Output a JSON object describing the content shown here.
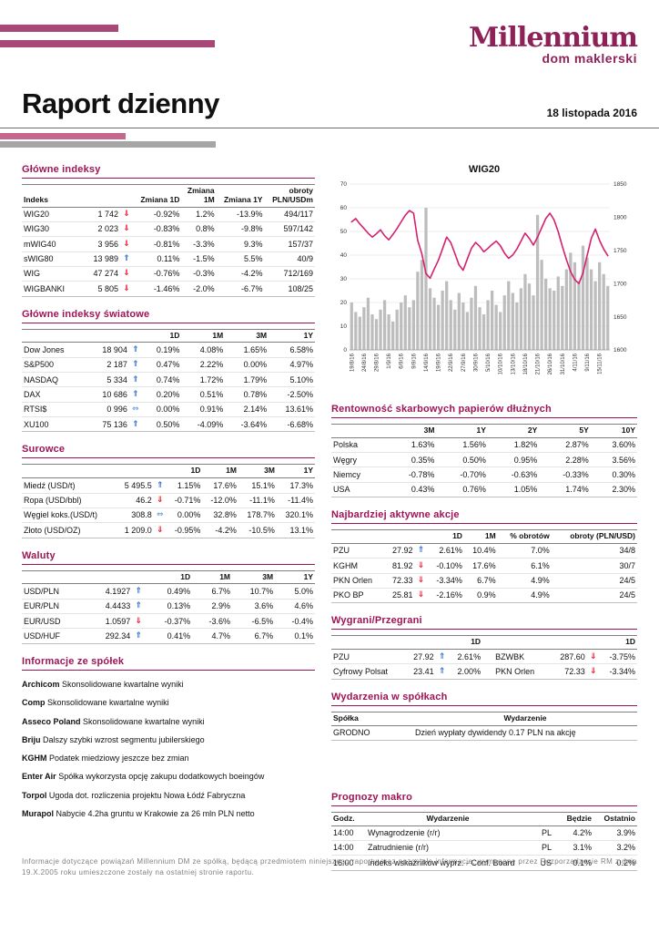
{
  "page": {
    "logo": {
      "name": "Millennium",
      "subtitle": "dom maklerski"
    },
    "title": "Raport dzienny",
    "date": "18 listopada 2016",
    "footer": "Informacje dotyczące powiązań Millennium DM ze spółką, będącą przedmiotem niniejszego raportu oraz pozostałe informacje, wymagane przez Rozporządzenie RM z dnia 19.X.2005 roku umieszczone zostały na ostatniej stronie raportu.",
    "colors": {
      "brand": "#9e1456",
      "accent_pink": "#c4688e",
      "accent_gray": "#a6a6a6",
      "up_arrow": "#2e6fd0",
      "down_arrow": "#f0142d",
      "flat_arrow": "#6fa8dc"
    }
  },
  "sections": {
    "main_indexes": {
      "title": "Główne indeksy",
      "headers": [
        "Indeks",
        "",
        "",
        "Zmiana 1D",
        "Zmiana\n1M",
        "Zmiana 1Y",
        "obroty\nPLN/USDm"
      ],
      "rows": [
        [
          "WIG20",
          "1 742",
          "@down",
          "-0.92%",
          "1.2%",
          "-13.9%",
          "494/117"
        ],
        [
          "WIG30",
          "2 023",
          "@down",
          "-0.83%",
          "0.8%",
          "-9.8%",
          "597/142"
        ],
        [
          "mWIG40",
          "3 956",
          "@down",
          "-0.81%",
          "-3.3%",
          "9.3%",
          "157/37"
        ],
        [
          "sWIG80",
          "13 989",
          "@up",
          "0.11%",
          "-1.5%",
          "5.5%",
          "40/9"
        ],
        [
          "WIG",
          "47 274",
          "@down",
          "-0.76%",
          "-0.3%",
          "-4.2%",
          "712/169"
        ],
        [
          "WIGBANKI",
          "5 805",
          "@down",
          "-1.46%",
          "-2.0%",
          "-6.7%",
          "108/25"
        ]
      ]
    },
    "world_indexes": {
      "title": "Główne indeksy światowe",
      "headers": [
        "",
        "",
        "",
        "1D",
        "1M",
        "3M",
        "1Y"
      ],
      "rows": [
        [
          "Dow Jones",
          "18 904",
          "@up",
          "0.19%",
          "4.08%",
          "1.65%",
          "6.58%"
        ],
        [
          "S&P500",
          "2 187",
          "@up",
          "0.47%",
          "2.22%",
          "0.00%",
          "4.97%"
        ],
        [
          "NASDAQ",
          "5 334",
          "@up",
          "0.74%",
          "1.72%",
          "1.79%",
          "5.10%"
        ],
        [
          "DAX",
          "10 686",
          "@up",
          "0.20%",
          "0.51%",
          "0.78%",
          "-2.50%"
        ],
        [
          "RTSI$",
          "0 996",
          "@flat",
          "0.00%",
          "0.91%",
          "2.14%",
          "13.61%"
        ],
        [
          "XU100",
          "75 136",
          "@up",
          "0.50%",
          "-4.09%",
          "-3.64%",
          "-6.68%"
        ]
      ]
    },
    "commodities": {
      "title": "Surowce",
      "headers": [
        "",
        "",
        "",
        "1D",
        "1M",
        "3M",
        "1Y"
      ],
      "rows": [
        [
          "Miedź (USD/t)",
          "5 495.5",
          "@up",
          "1.15%",
          "17.6%",
          "15.1%",
          "17.3%"
        ],
        [
          "Ropa (USD/bbl)",
          "46.2",
          "@down",
          "-0.71%",
          "-12.0%",
          "-11.1%",
          "-11.4%"
        ],
        [
          "Węgiel koks.(USD/t)",
          "308.8",
          "@flat",
          "0.00%",
          "32.8%",
          "178.7%",
          "320.1%"
        ],
        [
          "Złoto (USD/OZ)",
          "1 209.0",
          "@down",
          "-0.95%",
          "-4.2%",
          "-10.5%",
          "13.1%"
        ]
      ]
    },
    "currencies": {
      "title": "Waluty",
      "headers": [
        "",
        "",
        "",
        "1D",
        "1M",
        "3M",
        "1Y"
      ],
      "rows": [
        [
          "USD/PLN",
          "4.1927",
          "@up",
          "0.49%",
          "6.7%",
          "10.7%",
          "5.0%"
        ],
        [
          "EUR/PLN",
          "4.4433",
          "@up",
          "0.13%",
          "2.9%",
          "3.6%",
          "4.6%"
        ],
        [
          "EUR/USD",
          "1.0597",
          "@down",
          "-0.37%",
          "-3.6%",
          "-6.5%",
          "-0.4%"
        ],
        [
          "USD/HUF",
          "292.34",
          "@up",
          "0.41%",
          "4.7%",
          "6.7%",
          "0.1%"
        ]
      ]
    },
    "company_news": {
      "title": "Informacje ze spółek",
      "items": [
        {
          "name": "Archicom",
          "text": "Skonsolidowane kwartalne wyniki"
        },
        {
          "name": "Comp",
          "text": "Skonsolidowane kwartalne wyniki"
        },
        {
          "name": "Asseco Poland",
          "text": "Skonsolidowane kwartalne wyniki"
        },
        {
          "name": "Briju",
          "text": "Dalszy szybki wzrost segmentu jubilerskiego"
        },
        {
          "name": "KGHM",
          "text": "Podatek miedziowy jeszcze bez zmian"
        },
        {
          "name": "Enter Air",
          "text": "Spółka wykorzysta opcję zakupu dodatkowych boeingów"
        },
        {
          "name": "Torpol",
          "text": "Ugoda dot. rozliczenia projektu Nowa Łódź Fabryczna"
        },
        {
          "name": "Murapol",
          "text": "Nabycie 4.2ha gruntu w Krakowie za 26 mln PLN netto"
        }
      ]
    },
    "bonds": {
      "title": "Rentowność skarbowych papierów dłużnych",
      "headers": [
        "",
        "3M",
        "1Y",
        "2Y",
        "5Y",
        "10Y"
      ],
      "rows": [
        [
          "Polska",
          "1.63%",
          "1.56%",
          "1.82%",
          "2.87%",
          "3.60%"
        ],
        [
          "Węgry",
          "0.35%",
          "0.50%",
          "0.95%",
          "2.28%",
          "3.56%"
        ],
        [
          "Niemcy",
          "-0.78%",
          "-0.70%",
          "-0.63%",
          "-0.33%",
          "0.30%"
        ],
        [
          "USA",
          "0.43%",
          "0.76%",
          "1.05%",
          "1.74%",
          "2.30%"
        ]
      ]
    },
    "active_stocks": {
      "title": "Najbardziej aktywne akcje",
      "headers": [
        "",
        "",
        "",
        "1D",
        "1M",
        "% obrotów",
        "obroty (PLN/USD)"
      ],
      "rows": [
        [
          "PZU",
          "27.92",
          "@up",
          "2.61%",
          "10.4%",
          "7.0%",
          "34/8"
        ],
        [
          "KGHM",
          "81.92",
          "@down",
          "-0.10%",
          "17.6%",
          "6.1%",
          "30/7"
        ],
        [
          "PKN Orlen",
          "72.33",
          "@down",
          "-3.34%",
          "6.7%",
          "4.9%",
          "24/5"
        ],
        [
          "PKO BP",
          "25.81",
          "@down",
          "-2.16%",
          "0.9%",
          "4.9%",
          "24/5"
        ]
      ]
    },
    "winners_losers": {
      "title": "Wygrani/Przegrani",
      "headers": [
        "",
        "",
        "",
        "1D",
        "",
        "",
        "",
        "1D"
      ],
      "rows": [
        [
          "PZU",
          "27.92",
          "@up",
          "2.61%",
          "BZWBK",
          "287.60",
          "@down",
          "-3.75%"
        ],
        [
          "Cyfrowy Polsat",
          "23.41",
          "@up",
          "2.00%",
          "PKN Orlen",
          "72.33",
          "@down",
          "-3.34%"
        ]
      ]
    },
    "company_events": {
      "title": "Wydarzenia w spółkach",
      "headers": [
        "Spółka",
        "Wydarzenie"
      ],
      "rows": [
        [
          "GRODNO",
          "Dzień wypłaty dywidendy 0.17 PLN na akcję"
        ]
      ]
    },
    "macro": {
      "title": "Prognozy makro",
      "headers": [
        "Godz.",
        "Wydarzenie",
        "",
        "Będzie",
        "Ostatnio"
      ],
      "rows": [
        [
          "14:00",
          "Wynagrodzenie (r/r)",
          "PL",
          "4.2%",
          "3.9%"
        ],
        [
          "14:00",
          "Zatrudnienie (r/r)",
          "PL",
          "3.1%",
          "3.2%"
        ],
        [
          "16:00",
          "Indeks wskaźników wyprz. - Conf. Board",
          "US",
          "0.1%",
          "0.2%"
        ]
      ]
    }
  },
  "chart_data": {
    "type": "line+bar",
    "title": "WIG20",
    "x_labels": [
      "19/8/16",
      "24/8/16",
      "29/8/16",
      "1/9/16",
      "6/9/16",
      "9/9/16",
      "14/9/16",
      "19/9/16",
      "22/9/16",
      "27/9/16",
      "30/9/16",
      "5/10/16",
      "10/10/16",
      "13/10/16",
      "18/10/16",
      "21/10/16",
      "26/10/16",
      "31/10/16",
      "4/11/16",
      "9/11/16",
      "15/11/16"
    ],
    "label_every": 3,
    "line_axis": {
      "min": 1600,
      "max": 1850,
      "ticks": [
        1600,
        1650,
        1700,
        1750,
        1800,
        1850
      ]
    },
    "bar_axis": {
      "min": 0,
      "max": 70,
      "ticks": [
        0,
        10,
        20,
        30,
        40,
        50,
        60,
        70
      ]
    },
    "line": [
      1793,
      1798,
      1790,
      1783,
      1776,
      1770,
      1775,
      1781,
      1772,
      1766,
      1774,
      1783,
      1793,
      1803,
      1810,
      1806,
      1765,
      1745,
      1715,
      1708,
      1722,
      1735,
      1752,
      1770,
      1762,
      1745,
      1728,
      1720,
      1737,
      1753,
      1762,
      1756,
      1748,
      1753,
      1759,
      1764,
      1757,
      1746,
      1738,
      1743,
      1752,
      1764,
      1776,
      1768,
      1758,
      1770,
      1784,
      1798,
      1806,
      1796,
      1778,
      1756,
      1736,
      1718,
      1706,
      1700,
      1716,
      1742,
      1768,
      1782,
      1765,
      1752,
      1742
    ],
    "bars": [
      20,
      16,
      14,
      18,
      22,
      15,
      13,
      17,
      21,
      15,
      12,
      17,
      20,
      23,
      18,
      21,
      33,
      38,
      60,
      26,
      22,
      19,
      25,
      29,
      21,
      17,
      24,
      20,
      16,
      22,
      27,
      18,
      15,
      21,
      25,
      19,
      16,
      23,
      29,
      24,
      20,
      26,
      32,
      28,
      23,
      57,
      38,
      30,
      26,
      25,
      31,
      27,
      34,
      41,
      37,
      29,
      44,
      39,
      34,
      29,
      37,
      32,
      27
    ],
    "line_color": "#d4216e",
    "bar_color": "#bdbdbd"
  }
}
